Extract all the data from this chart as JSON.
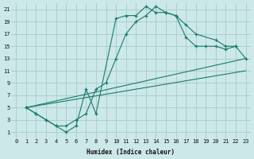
{
  "xlabel": "Humidex (Indice chaleur)",
  "bg_color": "#cce8e8",
  "grid_color": "#aacfcf",
  "line_color": "#1a7a6e",
  "xlim": [
    -0.5,
    23.5
  ],
  "ylim": [
    0,
    22
  ],
  "xticks": [
    0,
    1,
    2,
    3,
    4,
    5,
    6,
    7,
    8,
    9,
    10,
    11,
    12,
    13,
    14,
    15,
    16,
    17,
    18,
    19,
    20,
    21,
    22,
    23
  ],
  "yticks": [
    1,
    3,
    5,
    7,
    9,
    11,
    13,
    15,
    17,
    19,
    21
  ],
  "line1_x": [
    1,
    2,
    3,
    4,
    5,
    6,
    7,
    8,
    10,
    11,
    12,
    13,
    14,
    15,
    16,
    17,
    18,
    20,
    21,
    22
  ],
  "line1_y": [
    5,
    4,
    3,
    2,
    1,
    2,
    8,
    4,
    19.5,
    20,
    20,
    21.5,
    20.5,
    20.5,
    20,
    18.5,
    17,
    16,
    15,
    15
  ],
  "line2_x": [
    1,
    2,
    3,
    4,
    5,
    6,
    7,
    8,
    9,
    10,
    11,
    12,
    13,
    14,
    15,
    16,
    17,
    18,
    19,
    20,
    21,
    22,
    23
  ],
  "line2_y": [
    5,
    4,
    3,
    2,
    2,
    3,
    4,
    8,
    9,
    13,
    17,
    19,
    20,
    21.5,
    20.5,
    20,
    16.5,
    15,
    15,
    15,
    14.5,
    15,
    13
  ],
  "line3_x": [
    1,
    23
  ],
  "line3_y": [
    5,
    13
  ],
  "line4_x": [
    1,
    23
  ],
  "line4_y": [
    5,
    11
  ]
}
